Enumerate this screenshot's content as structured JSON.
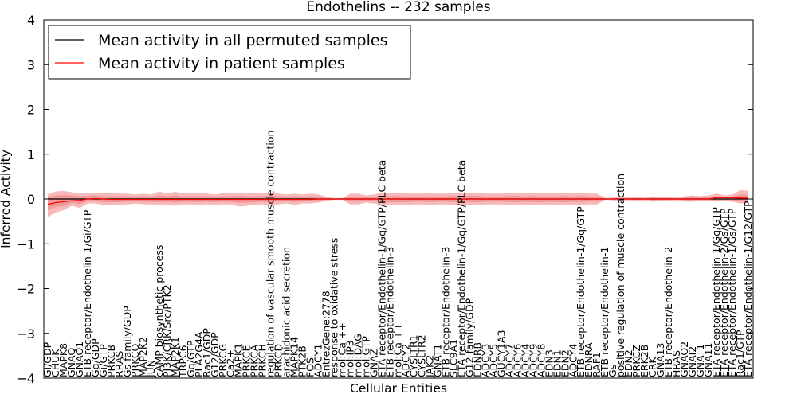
{
  "chart_data": {
    "type": "line",
    "title": "Endothelins -- 232 samples",
    "xlabel": "Cellular Entities",
    "ylabel": "Inferred Activity",
    "ylim": [
      -4,
      4
    ],
    "yticks": [
      -4,
      -3,
      -2,
      -1,
      0,
      1,
      2,
      3,
      4
    ],
    "legend": {
      "position": "top-left",
      "entries": [
        {
          "label": "Mean activity in all permuted samples",
          "color": "#000000"
        },
        {
          "label": "Mean activity in patient samples",
          "color": "#ff0000"
        }
      ]
    },
    "band_color": "#f08080",
    "categories": [
      "Gi/GDP",
      "CHUK",
      "MAPK8",
      "GNAQ",
      "GNAO1",
      "ETB receptor/Endothelin-1/Gi/GTP",
      "Gq/GDP",
      "Gi/GTP",
      "PRKCB",
      "RRAS",
      "Gs family/GDP",
      "PRKCQ",
      "MAP2K2",
      "JUN",
      "cAMP biosynthetic process",
      "PI3K/CRK/Src/PTK2",
      "MAP2K1",
      "TRPC6",
      "Gq/GTP",
      "PLA2G4A",
      "Rac1/GDP",
      "G12/GDP",
      "PRKCG",
      "Ca2+",
      "MAPK1",
      "PRKCE",
      "PRKCA",
      "PRKCH",
      "regulation of vascular smooth muscle contraction",
      "PRKCD",
      "arachidonic acid secretion",
      "MAPK14",
      "PTK2B",
      "FOS",
      "ADCY1",
      "EntrezGene:2778",
      "response to oxidative stress",
      "mol:Ca ++",
      "mol:IP3",
      "mol:DAG",
      "mol:GTP",
      "GNAZ",
      "ETA receptor/Endothelin-1/Gq/GTP/PLC beta",
      "ETB receptor/Endothelin-3",
      "mol:Ca ++",
      "ADCY2",
      "CYSLTR1",
      "CYSLTR2",
      "JAK2",
      "GNAT1",
      "ETB receptor/Endothelin-3",
      "SLC9A1",
      "ETA receptor/Endothelin-1/Gq/GTP/PLC beta",
      "G12 family/GDP",
      "EDNRB",
      "ADCY3",
      "ADCY5",
      "GUCY1A3",
      "ADCY7",
      "ADCY6",
      "ADCY4",
      "ADCY9",
      "ADCY8",
      "EDN3",
      "EDN1",
      "EDN2",
      "ADCY4",
      "ETB receptor/Endothelin-1/Gq/GTP",
      "EDNRA",
      "RAF1",
      "ETB receptor/Endothelin-1",
      "Gs",
      "positive regulation of muscle contraction",
      "EDN2",
      "PRKCZ",
      "ERK2B",
      "CRK",
      "GNA13",
      "ETB receptor/Endothelin-2",
      "HRAS",
      "GNAO2",
      "GNAI2",
      "GNAT1",
      "GNA11",
      "ETA receptor/Endothelin-1/Gq/GTP",
      "ETA receptor/Endothelin-2/Gs/GTP",
      "ETA receptor/Endothelin-1/Gs/GTP",
      "Rac1/GTP",
      "ETA receptor/Endothelin-1/G12/GTP"
    ],
    "series": [
      {
        "name": "Mean activity in all permuted samples",
        "color": "#000000",
        "values": [
          0,
          0,
          0,
          0,
          0,
          0,
          0,
          0,
          0,
          0,
          0,
          0,
          0,
          0,
          0,
          0,
          0,
          0,
          0,
          0,
          0,
          0,
          0,
          0,
          0,
          0,
          0,
          0,
          0,
          0,
          0,
          0,
          0,
          0,
          0,
          0,
          0,
          0,
          0,
          0,
          0,
          0,
          0,
          0,
          0,
          0,
          0,
          0,
          0,
          0,
          0,
          0,
          0,
          0,
          0,
          0,
          0,
          0,
          0,
          0,
          0,
          0,
          0,
          0,
          0,
          0,
          0,
          0,
          0,
          0,
          0,
          0,
          0,
          0,
          0,
          0,
          0,
          0,
          0,
          0,
          0,
          0,
          0,
          0,
          0,
          0,
          0,
          0,
          0
        ]
      },
      {
        "name": "Mean activity in patient samples",
        "color": "#ff0000",
        "values": [
          -0.12,
          -0.08,
          -0.06,
          -0.04,
          -0.03,
          0.0,
          0.01,
          0.0,
          -0.01,
          -0.01,
          -0.01,
          -0.01,
          -0.01,
          -0.01,
          -0.01,
          -0.01,
          -0.01,
          -0.01,
          -0.01,
          -0.01,
          -0.01,
          -0.01,
          -0.01,
          -0.01,
          -0.01,
          -0.01,
          -0.01,
          -0.01,
          -0.01,
          -0.01,
          -0.01,
          -0.01,
          -0.01,
          -0.01,
          0.0,
          0.0,
          0.0,
          0.0,
          0.0,
          0.0,
          0.0,
          0.0,
          0.0,
          0.0,
          0.0,
          0.0,
          0.0,
          0.0,
          0.0,
          0.0,
          0.0,
          0.0,
          0.0,
          0.0,
          0.0,
          0.0,
          0.0,
          0.0,
          0.0,
          0.0,
          0.0,
          0.0,
          0.0,
          0.0,
          0.0,
          0.0,
          0.0,
          0.0,
          0.0,
          0.0,
          0.0,
          0.0,
          0.0,
          0.0,
          0.0,
          0.0,
          0.0,
          0.0,
          0.0,
          0.0,
          0.0,
          0.0,
          0.0,
          0.0,
          0.03,
          0.03,
          0.03,
          0.02,
          0.02
        ]
      }
    ],
    "band_upper": [
      0.1,
      0.17,
      0.18,
      0.15,
      0.12,
      0.14,
      0.14,
      0.13,
      0.13,
      0.12,
      0.12,
      0.1,
      0.12,
      0.1,
      0.17,
      0.12,
      0.16,
      0.13,
      0.12,
      0.13,
      0.12,
      0.1,
      0.13,
      0.12,
      0.14,
      0.12,
      0.13,
      0.12,
      0.14,
      0.12,
      0.1,
      0.12,
      0.1,
      0.12,
      0.1,
      0.05,
      0.02,
      0.02,
      0.12,
      0.12,
      0.08,
      0.1,
      0.14,
      0.13,
      0.14,
      0.13,
      0.12,
      0.12,
      0.13,
      0.12,
      0.12,
      0.14,
      0.13,
      0.14,
      0.14,
      0.12,
      0.12,
      0.12,
      0.14,
      0.14,
      0.12,
      0.14,
      0.13,
      0.12,
      0.13,
      0.14,
      0.12,
      0.14,
      0.12,
      0.12,
      0.02,
      0.03,
      0.04,
      0.03,
      0.04,
      0.03,
      0.06,
      0.04,
      0.05,
      0.03,
      0.06,
      0.08,
      0.06,
      0.08,
      0.12,
      0.08,
      0.1,
      0.2,
      0.18
    ],
    "band_lower": [
      -0.4,
      -0.3,
      -0.25,
      -0.15,
      -0.2,
      -0.1,
      -0.1,
      -0.13,
      -0.14,
      -0.13,
      -0.12,
      -0.1,
      -0.12,
      -0.12,
      -0.14,
      -0.12,
      -0.15,
      -0.12,
      -0.12,
      -0.13,
      -0.12,
      -0.14,
      -0.12,
      -0.12,
      -0.17,
      -0.15,
      -0.13,
      -0.12,
      -0.13,
      -0.12,
      -0.1,
      -0.13,
      -0.1,
      -0.1,
      -0.08,
      -0.04,
      -0.02,
      -0.02,
      -0.12,
      -0.12,
      -0.08,
      -0.1,
      -0.12,
      -0.13,
      -0.14,
      -0.13,
      -0.12,
      -0.12,
      -0.13,
      -0.12,
      -0.12,
      -0.13,
      -0.13,
      -0.14,
      -0.14,
      -0.12,
      -0.12,
      -0.12,
      -0.14,
      -0.14,
      -0.12,
      -0.13,
      -0.13,
      -0.12,
      -0.13,
      -0.14,
      -0.12,
      -0.13,
      -0.12,
      -0.12,
      -0.02,
      -0.03,
      -0.04,
      -0.03,
      -0.04,
      -0.03,
      -0.06,
      -0.04,
      -0.05,
      -0.03,
      -0.06,
      -0.06,
      -0.04,
      -0.04,
      -0.06,
      -0.05,
      -0.06,
      -0.1,
      -0.08
    ],
    "band_inner_upper": [
      0.05,
      0.08,
      0.09,
      0.08,
      0.06,
      0.07,
      0.07,
      0.06,
      0.06,
      0.06,
      0.06,
      0.05,
      0.06,
      0.05,
      0.08,
      0.06,
      0.08,
      0.06,
      0.06,
      0.06,
      0.06,
      0.05,
      0.06,
      0.06,
      0.07,
      0.06,
      0.06,
      0.06,
      0.07,
      0.06,
      0.05,
      0.06,
      0.05,
      0.06,
      0.05,
      0.02,
      0.01,
      0.01,
      0.06,
      0.06,
      0.04,
      0.05,
      0.07,
      0.06,
      0.07,
      0.06,
      0.06,
      0.06,
      0.06,
      0.06,
      0.06,
      0.07,
      0.06,
      0.07,
      0.07,
      0.06,
      0.06,
      0.06,
      0.07,
      0.07,
      0.06,
      0.07,
      0.06,
      0.06,
      0.06,
      0.07,
      0.06,
      0.07,
      0.06,
      0.06,
      0.01,
      0.01,
      0.02,
      0.01,
      0.02,
      0.01,
      0.03,
      0.02,
      0.02,
      0.01,
      0.03,
      0.04,
      0.03,
      0.04,
      0.06,
      0.04,
      0.05,
      0.1,
      0.09
    ],
    "band_inner_lower": [
      -0.25,
      -0.18,
      -0.15,
      -0.09,
      -0.11,
      -0.05,
      -0.05,
      -0.07,
      -0.07,
      -0.07,
      -0.06,
      -0.05,
      -0.06,
      -0.06,
      -0.07,
      -0.06,
      -0.08,
      -0.06,
      -0.06,
      -0.07,
      -0.06,
      -0.07,
      -0.06,
      -0.06,
      -0.09,
      -0.08,
      -0.07,
      -0.06,
      -0.07,
      -0.06,
      -0.05,
      -0.07,
      -0.05,
      -0.05,
      -0.04,
      -0.02,
      -0.01,
      -0.01,
      -0.06,
      -0.06,
      -0.04,
      -0.05,
      -0.06,
      -0.07,
      -0.07,
      -0.07,
      -0.06,
      -0.06,
      -0.07,
      -0.06,
      -0.06,
      -0.07,
      -0.07,
      -0.07,
      -0.07,
      -0.06,
      -0.06,
      -0.06,
      -0.07,
      -0.07,
      -0.06,
      -0.07,
      -0.07,
      -0.06,
      -0.07,
      -0.07,
      -0.06,
      -0.07,
      -0.06,
      -0.06,
      -0.01,
      -0.01,
      -0.02,
      -0.01,
      -0.02,
      -0.01,
      -0.03,
      -0.02,
      -0.02,
      -0.01,
      -0.03,
      -0.03,
      -0.02,
      -0.02,
      -0.03,
      -0.02,
      -0.03,
      -0.05,
      -0.04
    ]
  }
}
